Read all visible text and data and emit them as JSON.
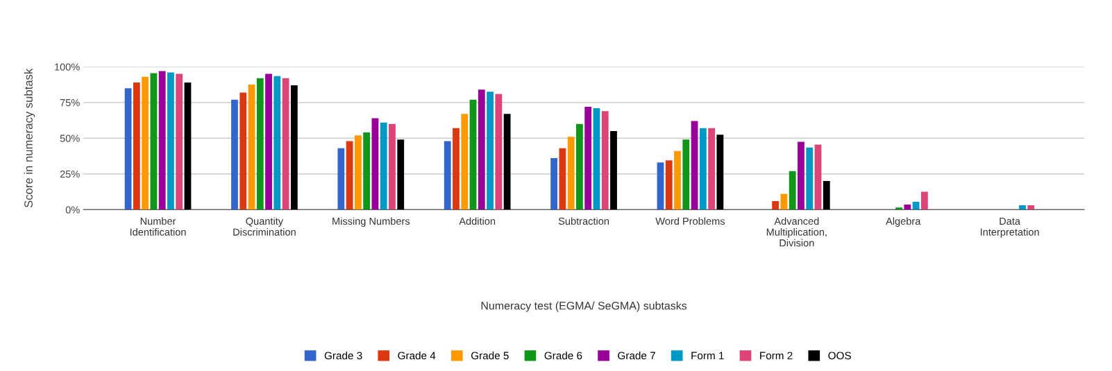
{
  "chart_data": {
    "type": "bar",
    "xlabel": "Numeracy test (EGMA/ SeGMA) subtasks",
    "ylabel": "Score in numeracy subtask",
    "categories": [
      "Number\nIdentification",
      "Quantity\nDiscrimination",
      "Missing Numbers",
      "Addition",
      "Subtraction",
      "Word Problems",
      "Advanced\nMultiplication,\nDivision",
      "Algebra",
      "Data\nInterpretation"
    ],
    "series": [
      {
        "name": "Grade 3",
        "color": "#3366cc",
        "values": [
          85,
          77,
          43,
          48,
          36,
          33,
          0,
          0,
          0
        ]
      },
      {
        "name": "Grade 4",
        "color": "#dc3912",
        "values": [
          89,
          82,
          48,
          57,
          43,
          34.5,
          6,
          0,
          0
        ]
      },
      {
        "name": "Grade 5",
        "color": "#ff9900",
        "values": [
          93,
          87.5,
          52,
          67,
          51,
          41,
          11,
          0,
          0
        ]
      },
      {
        "name": "Grade 6",
        "color": "#109618",
        "values": [
          95.5,
          92,
          54,
          77,
          60,
          49,
          27,
          1.5,
          0
        ]
      },
      {
        "name": "Grade 7",
        "color": "#990099",
        "values": [
          97,
          95,
          64,
          84,
          72,
          62,
          47.5,
          3.5,
          0
        ]
      },
      {
        "name": "Form 1",
        "color": "#0099c6",
        "values": [
          96,
          93.5,
          61,
          82.5,
          71,
          57,
          43.5,
          5.5,
          3
        ]
      },
      {
        "name": "Form 2",
        "color": "#dd4477",
        "values": [
          95,
          92,
          60,
          81,
          69,
          57,
          45.5,
          12.5,
          3
        ]
      },
      {
        "name": "OOS",
        "color": "#000000",
        "values": [
          89,
          87,
          49,
          67,
          55,
          52.5,
          20,
          0,
          0
        ]
      }
    ],
    "ylim": [
      0,
      100
    ],
    "yticks": [
      {
        "value": 0,
        "label": "0%"
      },
      {
        "value": 25,
        "label": "25%"
      },
      {
        "value": 50,
        "label": "50%"
      },
      {
        "value": 75,
        "label": "75%"
      },
      {
        "value": 100,
        "label": "100%"
      }
    ],
    "grid": "y",
    "legend": "bottom"
  }
}
